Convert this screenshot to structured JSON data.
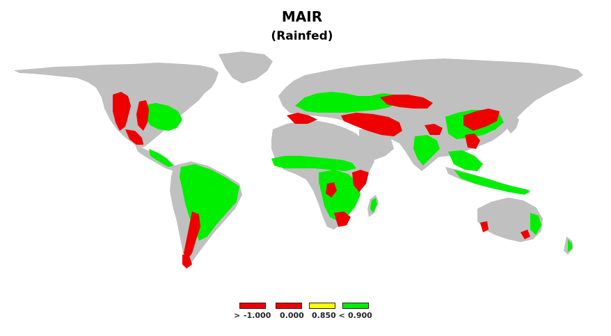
{
  "title": "MAIR",
  "subtitle": "(Rainfed)",
  "colors": {
    "land": "#c0c0c0",
    "red": "#ee0000",
    "green": "#00ee00",
    "yellow": "#ffff00",
    "ocean": "#ffffff"
  },
  "legend": {
    "swatches": [
      {
        "color": "#ee0000"
      },
      {
        "color": "#ee0000"
      },
      {
        "color": "#ffff00"
      },
      {
        "color": "#00ee00"
      }
    ],
    "labels": [
      ">",
      "-1.000",
      "0.000",
      "0.850 <",
      "0.900"
    ]
  }
}
